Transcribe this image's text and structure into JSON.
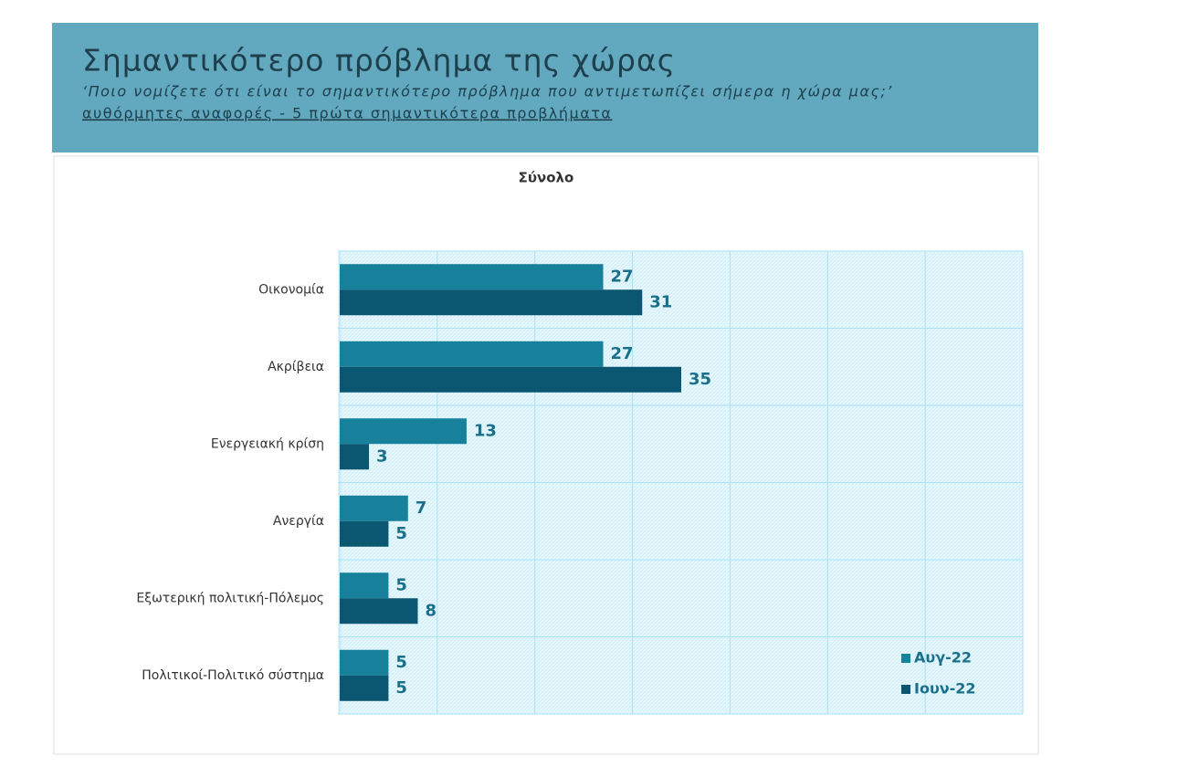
{
  "header": {
    "title": "Σημαντικότερο πρόβλημα της χώρας",
    "subtitle": "‘Ποιο νομίζετε ότι  είναι το σημαντικότερο πρόβλημα που αντιμετωπίζει σήμερα η χώρα μας;’",
    "note": "αυθόρμητες αναφορές - 5 πρώτα σημαντικότερα προβλήματα"
  },
  "chart_data": {
    "type": "hbar",
    "title": "Σύνολο",
    "categories": [
      "Οικονομία",
      "Ακρίβεια",
      "Ενεργειακή κρίση",
      "Ανεργία",
      "Εξωτερική πολιτική-Πόλεμος",
      "Πολιτικοί-Πολιτικό σύστημα"
    ],
    "series": [
      {
        "name": "Αυγ-22",
        "color": "#17809b",
        "values": [
          27,
          27,
          13,
          7,
          5,
          5
        ]
      },
      {
        "name": "Ιουν-22",
        "color": "#0b5671",
        "values": [
          31,
          35,
          3,
          5,
          8,
          5
        ]
      }
    ],
    "xlim": [
      0,
      70
    ],
    "xticks": [
      0,
      10,
      20,
      30,
      40,
      50,
      60,
      70
    ],
    "grid": true,
    "legend": "bottom-right"
  }
}
